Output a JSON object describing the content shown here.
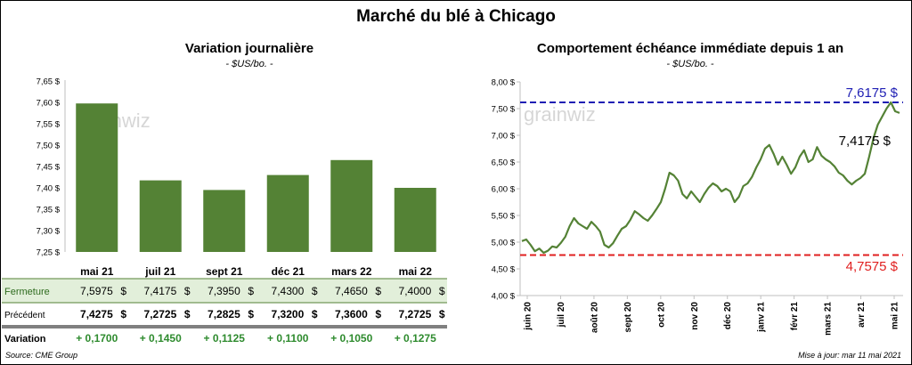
{
  "title": "Marché du blé à Chicago",
  "left_chart": {
    "title": "Variation journalière",
    "subtitle": "- $US/bo. -",
    "watermark": "grainwiz",
    "table": {
      "rows": [
        {
          "label": "Fermeture",
          "values": [
            "7,5975",
            "7,4175",
            "7,3950",
            "7,4300",
            "7,4650",
            "7,4000"
          ],
          "unit": "$"
        },
        {
          "label": "Précédent",
          "values": [
            "7,4275",
            "7,2725",
            "7,2825",
            "7,3200",
            "7,3600",
            "7,2725"
          ],
          "unit": "$"
        },
        {
          "label": "Variation",
          "values": [
            "+ 0,1700",
            "+ 0,1450",
            "+ 0,1125",
            "+ 0,1100",
            "+ 0,1050",
            "+ 0,1275"
          ],
          "unit": ""
        }
      ]
    }
  },
  "right_chart": {
    "title": "Comportement  échéance immédiate depuis 1 an",
    "subtitle": "- $US/bo. -",
    "watermark": "grainwiz",
    "high_label": "7,6175 $",
    "low_label": "4,7575 $",
    "last_label": "7,4175 $"
  },
  "footer": {
    "source": "Source: CME Group",
    "updated": "Mise à jour: mar 11 mai 2021"
  },
  "colors": {
    "bar": "#548235",
    "line": "#548235",
    "high": "#1f1fb4",
    "low": "#e02020",
    "positive": "#2e8b2e",
    "row_highlight": "#e2efda"
  },
  "chart_data": [
    {
      "type": "bar",
      "categories": [
        "mai 21",
        "juil 21",
        "sept 21",
        "déc 21",
        "mars 22",
        "mai 22"
      ],
      "values": [
        7.5975,
        7.4175,
        7.395,
        7.43,
        7.465,
        7.4
      ],
      "ylim": [
        7.25,
        7.65
      ],
      "yticks": [
        "7,25 $",
        "7,30 $",
        "7,35 $",
        "7,40 $",
        "7,45 $",
        "7,50 $",
        "7,55 $",
        "7,60 $",
        "7,65 $"
      ],
      "grid": false
    },
    {
      "type": "line",
      "ylim": [
        4.0,
        8.0
      ],
      "yticks": [
        "4,00 $",
        "4,50 $",
        "5,00 $",
        "5,50 $",
        "6,00 $",
        "6,50 $",
        "7,00 $",
        "7,50 $",
        "8,00 $"
      ],
      "x_ticks": [
        "juin 20",
        "juil 20",
        "août 20",
        "sept 20",
        "oct 20",
        "nov 20",
        "déc 20",
        "janv 21",
        "févr 21",
        "mars 21",
        "avr 21",
        "mai 21"
      ],
      "series": [
        {
          "values": [
            5.02,
            5.05,
            4.95,
            4.83,
            4.88,
            4.8,
            4.84,
            4.92,
            4.9,
            4.99,
            5.1,
            5.3,
            5.45,
            5.35,
            5.3,
            5.25,
            5.38,
            5.3,
            5.2,
            4.95,
            4.9,
            4.98,
            5.12,
            5.25,
            5.3,
            5.42,
            5.58,
            5.52,
            5.45,
            5.4,
            5.5,
            5.62,
            5.75,
            6.0,
            6.3,
            6.25,
            6.15,
            5.9,
            5.82,
            5.95,
            5.85,
            5.75,
            5.9,
            6.02,
            6.1,
            6.05,
            5.95,
            6.0,
            5.95,
            5.75,
            5.85,
            6.05,
            6.1,
            6.22,
            6.4,
            6.55,
            6.75,
            6.82,
            6.65,
            6.45,
            6.6,
            6.45,
            6.28,
            6.4,
            6.6,
            6.72,
            6.5,
            6.55,
            6.78,
            6.62,
            6.55,
            6.5,
            6.42,
            6.3,
            6.25,
            6.15,
            6.08,
            6.15,
            6.2,
            6.28,
            6.6,
            6.95,
            7.2,
            7.35,
            7.5,
            7.6175,
            7.45,
            7.4175
          ]
        }
      ],
      "reference_lines": [
        {
          "value": 7.6175,
          "label": "7,6175 $"
        },
        {
          "value": 4.7575,
          "label": "4,7575 $"
        }
      ],
      "last_value": 7.4175,
      "grid": false
    }
  ]
}
